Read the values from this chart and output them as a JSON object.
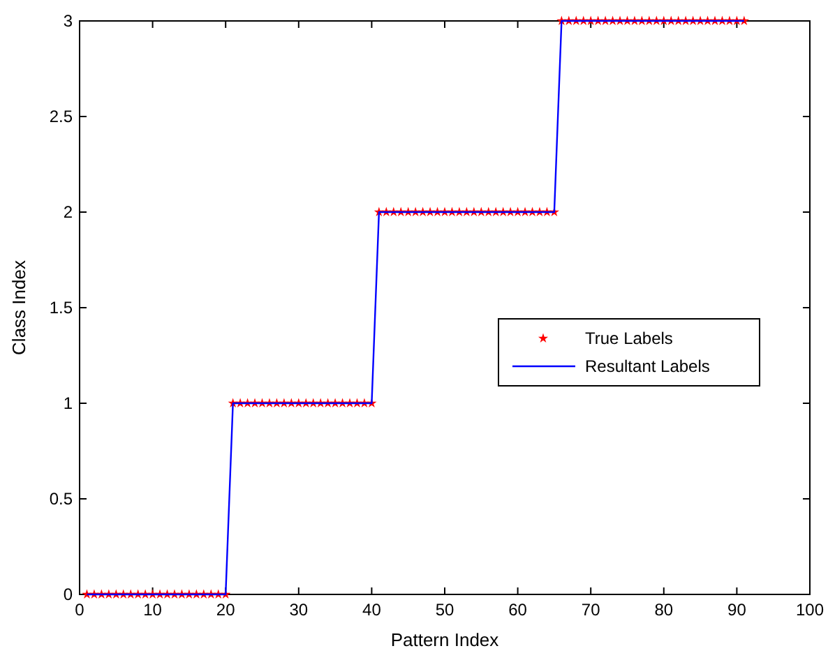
{
  "chart_data": {
    "type": "line",
    "xlabel": "Pattern Index",
    "ylabel": "Class Index",
    "x": [
      1,
      2,
      3,
      4,
      5,
      6,
      7,
      8,
      9,
      10,
      11,
      12,
      13,
      14,
      15,
      16,
      17,
      18,
      19,
      20,
      21,
      22,
      23,
      24,
      25,
      26,
      27,
      28,
      29,
      30,
      31,
      32,
      33,
      34,
      35,
      36,
      37,
      38,
      39,
      40,
      41,
      42,
      43,
      44,
      45,
      46,
      47,
      48,
      49,
      50,
      51,
      52,
      53,
      54,
      55,
      56,
      57,
      58,
      59,
      60,
      61,
      62,
      63,
      64,
      65,
      66,
      67,
      68,
      69,
      70,
      71,
      72,
      73,
      74,
      75,
      76,
      77,
      78,
      79,
      80,
      81,
      82,
      83,
      84,
      85,
      86,
      87,
      88,
      89,
      90,
      91
    ],
    "series": [
      {
        "name": "True Labels",
        "type": "scatter",
        "marker": "star",
        "color": "#ff0000",
        "values": [
          0,
          0,
          0,
          0,
          0,
          0,
          0,
          0,
          0,
          0,
          0,
          0,
          0,
          0,
          0,
          0,
          0,
          0,
          0,
          0,
          1,
          1,
          1,
          1,
          1,
          1,
          1,
          1,
          1,
          1,
          1,
          1,
          1,
          1,
          1,
          1,
          1,
          1,
          1,
          1,
          2,
          2,
          2,
          2,
          2,
          2,
          2,
          2,
          2,
          2,
          2,
          2,
          2,
          2,
          2,
          2,
          2,
          2,
          2,
          2,
          2,
          2,
          2,
          2,
          2,
          3,
          3,
          3,
          3,
          3,
          3,
          3,
          3,
          3,
          3,
          3,
          3,
          3,
          3,
          3,
          3,
          3,
          3,
          3,
          3,
          3,
          3,
          3,
          3,
          3,
          3
        ]
      },
      {
        "name": "Resultant Labels",
        "line_style": "solid",
        "color": "#0000ff",
        "values": [
          0,
          0,
          0,
          0,
          0,
          0,
          0,
          0,
          0,
          0,
          0,
          0,
          0,
          0,
          0,
          0,
          0,
          0,
          0,
          0,
          1,
          1,
          1,
          1,
          1,
          1,
          1,
          1,
          1,
          1,
          1,
          1,
          1,
          1,
          1,
          1,
          1,
          1,
          1,
          1,
          2,
          2,
          2,
          2,
          2,
          2,
          2,
          2,
          2,
          2,
          2,
          2,
          2,
          2,
          2,
          2,
          2,
          2,
          2,
          2,
          2,
          2,
          2,
          2,
          2,
          3,
          3,
          3,
          3,
          3,
          3,
          3,
          3,
          3,
          3,
          3,
          3,
          3,
          3,
          3,
          3,
          3,
          3,
          3,
          3,
          3,
          3,
          3,
          3,
          3,
          3
        ]
      }
    ],
    "xlim": [
      0,
      100
    ],
    "xticks": [
      0,
      10,
      20,
      30,
      40,
      50,
      60,
      70,
      80,
      90,
      100
    ],
    "ylim": [
      0,
      3
    ],
    "yticks": [
      0,
      0.5,
      1,
      1.5,
      2,
      2.5,
      3
    ],
    "grid": false,
    "legend": "right"
  }
}
